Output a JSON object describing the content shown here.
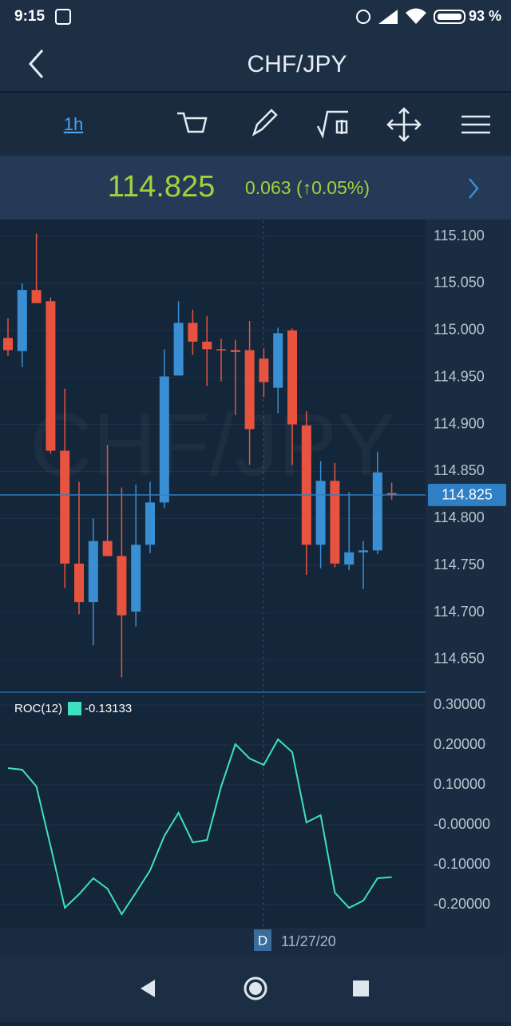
{
  "status_bar": {
    "time": "9:15",
    "battery": "93 %"
  },
  "header": {
    "title": "CHF/JPY"
  },
  "toolbar": {
    "timeframe": "1h"
  },
  "quote": {
    "price": "114.825",
    "change": "0.063 (↑0.05%)"
  },
  "chart_data": [
    {
      "type": "candlestick",
      "watermark": "CHF/JPY",
      "up_color": "#3a8fd4",
      "down_color": "#e8533f",
      "open": [
        114.992,
        114.978,
        115.043,
        115.031,
        114.872,
        114.752,
        114.711,
        114.776,
        114.76,
        114.701,
        114.772,
        114.817,
        114.952,
        115.008,
        114.988,
        114.98,
        114.979,
        114.979,
        114.97,
        114.939,
        115.0,
        114.899,
        114.772,
        114.84,
        114.751,
        114.764,
        114.766,
        114.827
      ],
      "high": [
        115.013,
        115.05,
        115.103,
        115.035,
        114.938,
        114.839,
        114.8,
        114.878,
        114.833,
        114.836,
        114.839,
        114.98,
        115.031,
        115.022,
        115.015,
        114.991,
        114.99,
        115.01,
        114.981,
        115.003,
        115.002,
        114.914,
        114.861,
        114.859,
        114.828,
        114.776,
        114.871,
        114.838
      ],
      "low": [
        114.973,
        114.961,
        115.029,
        114.869,
        114.726,
        114.698,
        114.665,
        114.76,
        114.631,
        114.685,
        114.763,
        114.811,
        114.952,
        114.974,
        114.941,
        114.946,
        114.91,
        114.857,
        114.929,
        114.912,
        114.857,
        114.74,
        114.747,
        114.748,
        114.745,
        114.725,
        114.762,
        114.82
      ],
      "close": [
        114.979,
        115.043,
        115.029,
        114.872,
        114.752,
        114.711,
        114.776,
        114.76,
        114.697,
        114.772,
        114.817,
        114.951,
        115.008,
        114.988,
        114.98,
        114.979,
        114.977,
        114.895,
        114.945,
        114.997,
        114.9,
        114.772,
        114.84,
        114.752,
        114.764,
        114.766,
        114.849,
        114.825
      ],
      "last_price": 114.825,
      "ylim": [
        114.616,
        115.117
      ],
      "yticks": [
        {
          "value": 115.1,
          "label": "115.100"
        },
        {
          "value": 115.05,
          "label": "115.050"
        },
        {
          "value": 115.0,
          "label": "115.000"
        },
        {
          "value": 114.95,
          "label": "114.950"
        },
        {
          "value": 114.9,
          "label": "114.900"
        },
        {
          "value": 114.85,
          "label": "114.850"
        },
        {
          "value": 114.8,
          "label": "114.800"
        },
        {
          "value": 114.75,
          "label": "114.750"
        },
        {
          "value": 114.7,
          "label": "114.700"
        },
        {
          "value": 114.65,
          "label": "114.650"
        }
      ],
      "grid": true
    },
    {
      "type": "line",
      "title": "ROC(12)",
      "legend_value": "-0.13133",
      "color": "#3fe0c0",
      "values": [
        0.142,
        0.138,
        0.096,
        -0.054,
        -0.208,
        -0.174,
        -0.134,
        -0.16,
        -0.224,
        -0.17,
        -0.114,
        -0.028,
        0.03,
        -0.044,
        -0.038,
        0.096,
        0.202,
        0.166,
        0.15,
        0.214,
        0.182,
        0.006,
        0.024,
        -0.17,
        -0.208,
        -0.19,
        -0.134,
        -0.131
      ],
      "ylim": [
        -0.258,
        0.33
      ],
      "yticks": [
        {
          "value": 0.3,
          "label": "0.30000"
        },
        {
          "value": 0.2,
          "label": "0.20000"
        },
        {
          "value": 0.1,
          "label": "0.10000"
        },
        {
          "value": 0,
          "label": "-0.00000"
        },
        {
          "value": -0.1,
          "label": "-0.10000"
        },
        {
          "value": -0.2,
          "label": "-0.20000"
        }
      ],
      "grid": true
    }
  ],
  "time_axis": {
    "marker": "D",
    "date": "11/27/20"
  }
}
